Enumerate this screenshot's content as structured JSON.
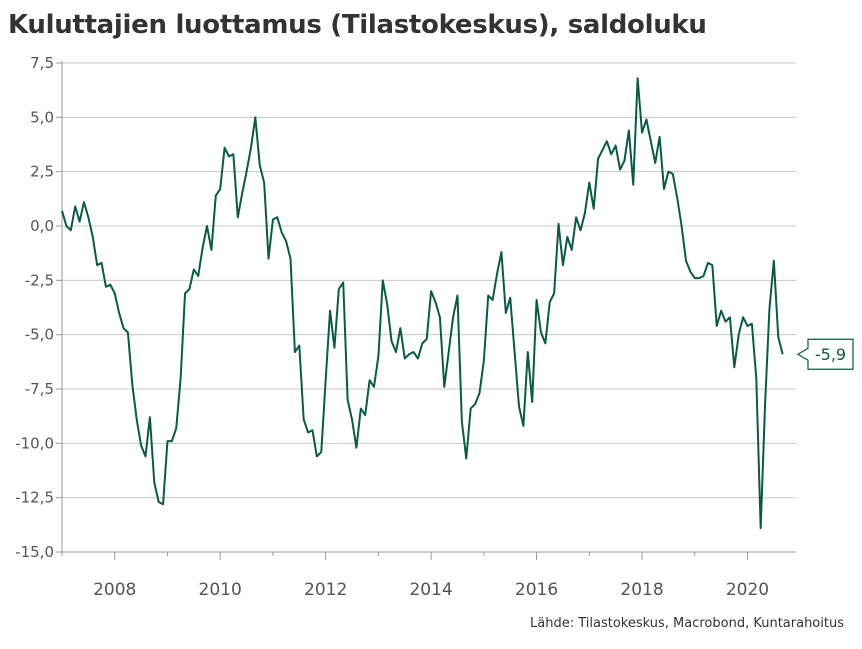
{
  "title": "Kuluttajien luottamus (Tilastokeskus), saldoluku",
  "source": "Lähde: Tilastokeskus, Macrobond, Kuntarahoitus",
  "colors": {
    "line": "#0b5a45",
    "grid": "#c8c8c8",
    "axis": "#9a9a9a",
    "text": "#555555"
  },
  "chart_data": {
    "type": "line",
    "title": "Kuluttajien luottamus (Tilastokeskus), saldoluku",
    "xlabel": "",
    "ylabel": "",
    "xlim": [
      2007.0,
      2020.92
    ],
    "ylim": [
      -15,
      7.5
    ],
    "y_ticks": [
      7.5,
      5.0,
      2.5,
      0.0,
      -2.5,
      -5.0,
      -7.5,
      -10.0,
      -12.5,
      -15.0
    ],
    "y_tick_labels": [
      "7,5",
      "5,0",
      "2,5",
      "0,0",
      "-2,5",
      "-5,0",
      "-7,5",
      "-10,0",
      "-12,5",
      "-15,0"
    ],
    "x_ticks": [
      2008,
      2010,
      2012,
      2014,
      2016,
      2018,
      2020
    ],
    "x_tick_labels": [
      "2008",
      "2010",
      "2012",
      "2014",
      "2016",
      "2018",
      "2020"
    ],
    "grid": "horizontal",
    "end_label": "-5,9",
    "series": [
      {
        "start": "2007-01",
        "frequency": "monthly",
        "values": [
          0.7,
          0.0,
          -0.2,
          0.9,
          0.2,
          1.1,
          0.4,
          -0.5,
          -1.8,
          -1.7,
          -2.8,
          -2.7,
          -3.1,
          -4.0,
          -4.7,
          -4.9,
          -7.3,
          -8.9,
          -10.1,
          -10.6,
          -8.8,
          -11.8,
          -12.7,
          -12.8,
          -9.9,
          -9.9,
          -9.3,
          -7.0,
          -3.1,
          -2.9,
          -2.0,
          -2.3,
          -1.0,
          0.0,
          -1.1,
          1.4,
          1.7,
          3.6,
          3.2,
          3.3,
          0.4,
          1.5,
          2.5,
          3.6,
          5.0,
          2.8,
          2.0,
          -1.5,
          0.3,
          0.4,
          -0.3,
          -0.7,
          -1.5,
          -5.8,
          -5.5,
          -8.9,
          -9.5,
          -9.4,
          -10.6,
          -10.4,
          -7.1,
          -3.9,
          -5.6,
          -2.9,
          -2.6,
          -8.0,
          -8.9,
          -10.2,
          -8.4,
          -8.7,
          -7.1,
          -7.4,
          -6.0,
          -2.5,
          -3.6,
          -5.3,
          -5.8,
          -4.7,
          -6.1,
          -5.9,
          -5.8,
          -6.1,
          -5.4,
          -5.2,
          -3.0,
          -3.5,
          -4.2,
          -7.4,
          -5.8,
          -4.2,
          -3.2,
          -9.0,
          -10.7,
          -8.4,
          -8.2,
          -7.7,
          -6.2,
          -3.2,
          -3.4,
          -2.2,
          -1.2,
          -4.0,
          -3.3,
          -5.8,
          -8.3,
          -9.2,
          -5.8,
          -8.1,
          -3.4,
          -4.9,
          -5.4,
          -3.5,
          -3.1,
          0.1,
          -1.8,
          -0.5,
          -1.1,
          0.4,
          -0.2,
          0.6,
          2.0,
          0.8,
          3.1,
          3.5,
          3.9,
          3.3,
          3.7,
          2.6,
          3.0,
          4.4,
          1.9,
          6.8,
          4.3,
          4.9,
          3.9,
          2.9,
          4.1,
          1.7,
          2.5,
          2.4,
          1.3,
          0.0,
          -1.6,
          -2.1,
          -2.4,
          -2.4,
          -2.3,
          -1.7,
          -1.8,
          -4.6,
          -3.9,
          -4.4,
          -4.2,
          -6.5,
          -5.0,
          -4.2,
          -4.6,
          -4.5,
          -7.0,
          -13.9,
          -8.2,
          -3.8,
          -1.6,
          -5.1,
          -5.9
        ]
      }
    ]
  }
}
